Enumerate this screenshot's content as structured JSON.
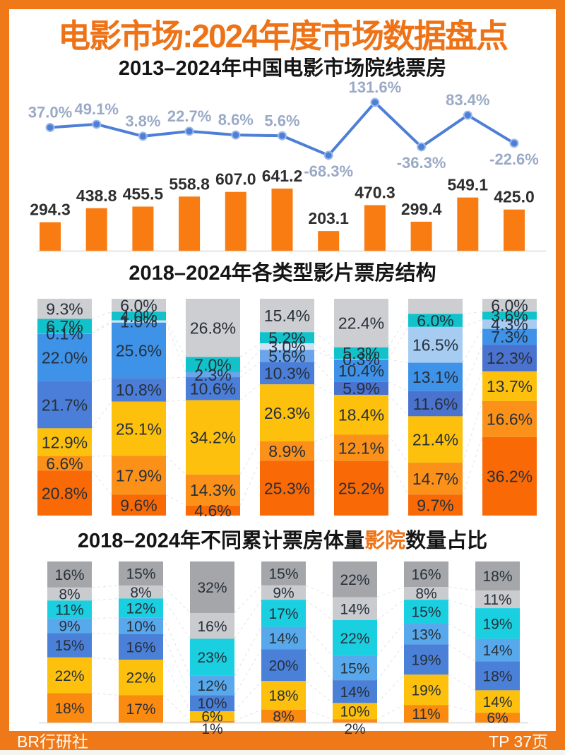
{
  "page": {
    "title": "电影市场:2024年度市场数据盘点",
    "footer_left": "BR行研社",
    "footer_right": "TP 37页"
  },
  "palette": {
    "frame": "#ef7918",
    "title_accent": "#ee7216",
    "bar_orange": "#f87c12",
    "line_blue": "#4d7fd6",
    "dot_ring": "#9db9ea",
    "line_label": "#9aaac6",
    "value_label": "#2e2e2e",
    "seg_label": "#272f3a",
    "connector": "#e3e5e8",
    "baseline": "#d9d9d9",
    "stack2": {
      "gray": "#cdced1",
      "teal": "#12c2ca",
      "pale": "#cfe2f5",
      "lightBlue": "#a6ccf2",
      "sky": "#6aa4ea",
      "blue": "#3e92e8",
      "royal": "#4a7ed8",
      "deep": "#4a72cf",
      "gold": "#fcc00d",
      "orange": "#fb9119",
      "deepOrange": "#f96a06"
    },
    "stack3": {
      "darkGray": "#a4a6a9",
      "lightGray": "#c9cbce",
      "cyan": "#19cfe0",
      "sky": "#57a9ec",
      "royal": "#4a80d8",
      "gold": "#fcc00d",
      "orange": "#fb8a10"
    }
  },
  "chart_data": [
    {
      "type": "bar+line",
      "title": "2013–2024年中国电影市场院线票房",
      "legend_position": "none",
      "grid": false,
      "bars": {
        "values": [
          294.3,
          438.8,
          455.5,
          558.8,
          607.0,
          641.2,
          203.1,
          470.3,
          299.4,
          549.1,
          425.0
        ],
        "labels": [
          "294.3",
          "438.8",
          "455.5",
          "558.8",
          "607.0",
          "641.2",
          "203.1",
          "470.3",
          "299.4",
          "549.1",
          "425.0"
        ]
      },
      "line": {
        "values": [
          37.0,
          49.1,
          3.8,
          22.7,
          8.6,
          5.6,
          -68.3,
          131.6,
          -36.3,
          83.4,
          -22.6
        ],
        "labels": [
          "37.0%",
          "49.1%",
          "3.8%",
          "22.7%",
          "8.6%",
          "5.6%",
          "-68.3%",
          "131.6%",
          "-36.3%",
          "83.4%",
          "-22.6%"
        ],
        "ylim": [
          -68.3,
          131.6
        ]
      }
    },
    {
      "type": "stacked-bar-100",
      "title": "2018–2024年各类型影片票房结构",
      "grid": false,
      "columns": [
        {
          "segments": [
            {
              "pct": 9.3,
              "label": "9.3%",
              "color": "gray"
            },
            {
              "pct": 6.7,
              "label": "6.7%",
              "color": "teal"
            },
            {
              "pct": 0.1,
              "label": "0.1%",
              "color": "pale"
            },
            {
              "pct": 22.0,
              "label": "22.0%",
              "color": "blue"
            },
            {
              "pct": 21.7,
              "label": "21.7%",
              "color": "royal"
            },
            {
              "pct": 12.9,
              "label": "12.9%",
              "color": "gold"
            },
            {
              "pct": 6.6,
              "label": "6.6%",
              "color": "orange"
            },
            {
              "pct": 20.8,
              "label": "20.8%",
              "color": "deepOrange"
            }
          ]
        },
        {
          "segments": [
            {
              "pct": 6.0,
              "label": "6.0%",
              "color": "gray"
            },
            {
              "pct": 4.0,
              "label": "4.0%",
              "color": "teal"
            },
            {
              "pct": 1.0,
              "label": "1.0%",
              "color": "pale"
            },
            {
              "pct": 25.6,
              "label": "25.6%",
              "color": "blue"
            },
            {
              "pct": 10.8,
              "label": "10.8%",
              "color": "royal"
            },
            {
              "pct": 25.1,
              "label": "25.1%",
              "color": "gold"
            },
            {
              "pct": 17.9,
              "label": "17.9%",
              "color": "orange"
            },
            {
              "pct": 9.6,
              "label": "9.6%",
              "color": "deepOrange"
            }
          ]
        },
        {
          "segments": [
            {
              "pct": 26.8,
              "label": "26.8%",
              "color": "gray"
            },
            {
              "pct": 7.0,
              "label": "7.0%",
              "color": "teal"
            },
            {
              "pct": 2.3,
              "label": "2.3%",
              "color": "sky"
            },
            {
              "pct": 10.6,
              "label": "10.6%",
              "color": "royal"
            },
            {
              "pct": 34.2,
              "label": "34.2%",
              "color": "gold"
            },
            {
              "pct": 14.3,
              "label": "14.3%",
              "color": "orange"
            },
            {
              "pct": 4.6,
              "label": "4.6%",
              "color": "deepOrange"
            }
          ]
        },
        {
          "segments": [
            {
              "pct": 15.4,
              "label": "15.4%",
              "color": "gray"
            },
            {
              "pct": 5.2,
              "label": "5.2%",
              "color": "teal"
            },
            {
              "pct": 3.0,
              "label": "3.0%",
              "color": "pale"
            },
            {
              "pct": 5.6,
              "label": "5.6%",
              "color": "sky"
            },
            {
              "pct": 10.3,
              "label": "10.3%",
              "color": "royal"
            },
            {
              "pct": 26.3,
              "label": "26.3%",
              "color": "gold"
            },
            {
              "pct": 8.9,
              "label": "8.9%",
              "color": "orange"
            },
            {
              "pct": 25.3,
              "label": "25.3%",
              "color": "deepOrange"
            }
          ]
        },
        {
          "segments": [
            {
              "pct": 22.4,
              "label": "22.4%",
              "color": "gray"
            },
            {
              "pct": 5.3,
              "label": "5.3%",
              "color": "teal"
            },
            {
              "pct": 0.3,
              "label": "0.3%",
              "color": "pale"
            },
            {
              "pct": 10.4,
              "label": "10.4%",
              "color": "blue"
            },
            {
              "pct": 5.9,
              "label": "5.9%",
              "color": "deep"
            },
            {
              "pct": 18.4,
              "label": "18.4%",
              "color": "gold"
            },
            {
              "pct": 12.1,
              "label": "12.1%",
              "color": "orange"
            },
            {
              "pct": 25.2,
              "label": "25.2%",
              "color": "deepOrange"
            }
          ]
        },
        {
          "segments": [
            {
              "pct": 7.0,
              "label": "",
              "color": "gray"
            },
            {
              "pct": 6.0,
              "label": "6.0%",
              "color": "teal"
            },
            {
              "pct": 16.5,
              "label": "16.5%",
              "color": "lightBlue"
            },
            {
              "pct": 13.1,
              "label": "13.1%",
              "color": "blue"
            },
            {
              "pct": 11.6,
              "label": "11.6%",
              "color": "deep"
            },
            {
              "pct": 21.4,
              "label": "21.4%",
              "color": "gold"
            },
            {
              "pct": 14.7,
              "label": "14.7%",
              "color": "orange"
            },
            {
              "pct": 9.7,
              "label": "9.7%",
              "color": "deepOrange"
            }
          ]
        },
        {
          "segments": [
            {
              "pct": 6.0,
              "label": "6.0%",
              "color": "gray"
            },
            {
              "pct": 3.6,
              "label": "3.6%",
              "color": "teal"
            },
            {
              "pct": 4.3,
              "label": "4.3%",
              "color": "lightBlue"
            },
            {
              "pct": 7.3,
              "label": "7.3%",
              "color": "blue"
            },
            {
              "pct": 12.3,
              "label": "12.3%",
              "color": "deep"
            },
            {
              "pct": 13.7,
              "label": "13.7%",
              "color": "gold"
            },
            {
              "pct": 16.6,
              "label": "16.6%",
              "color": "orange"
            },
            {
              "pct": 36.2,
              "label": "36.2%",
              "color": "deepOrange"
            }
          ]
        }
      ]
    },
    {
      "type": "stacked-bar-100",
      "title_parts": [
        "2018–2024年不同累计票房体量",
        "影院",
        "数量占比"
      ],
      "grid": false,
      "columns": [
        {
          "segments": [
            {
              "pct": 16,
              "label": "16%",
              "color": "darkGray"
            },
            {
              "pct": 8,
              "label": "8%",
              "color": "lightGray"
            },
            {
              "pct": 11,
              "label": "11%",
              "color": "cyan"
            },
            {
              "pct": 9,
              "label": "9%",
              "color": "sky"
            },
            {
              "pct": 15,
              "label": "15%",
              "color": "royal"
            },
            {
              "pct": 22,
              "label": "22%",
              "color": "gold"
            },
            {
              "pct": 18,
              "label": "18%",
              "color": "orange"
            }
          ]
        },
        {
          "segments": [
            {
              "pct": 15,
              "label": "15%",
              "color": "darkGray"
            },
            {
              "pct": 8,
              "label": "8%",
              "color": "lightGray"
            },
            {
              "pct": 12,
              "label": "12%",
              "color": "cyan"
            },
            {
              "pct": 10,
              "label": "10%",
              "color": "sky"
            },
            {
              "pct": 16,
              "label": "16%",
              "color": "royal"
            },
            {
              "pct": 22,
              "label": "22%",
              "color": "gold"
            },
            {
              "pct": 17,
              "label": "17%",
              "color": "orange"
            }
          ]
        },
        {
          "segments": [
            {
              "pct": 32,
              "label": "32%",
              "color": "darkGray"
            },
            {
              "pct": 16,
              "label": "16%",
              "color": "lightGray"
            },
            {
              "pct": 23,
              "label": "23%",
              "color": "cyan"
            },
            {
              "pct": 12,
              "label": "12%",
              "color": "sky"
            },
            {
              "pct": 10,
              "label": "10%",
              "color": "royal"
            },
            {
              "pct": 6,
              "label": "6%",
              "color": "gold"
            },
            {
              "pct": 1,
              "label": "1%",
              "color": "orange"
            }
          ]
        },
        {
          "segments": [
            {
              "pct": 15,
              "label": "15%",
              "color": "darkGray"
            },
            {
              "pct": 9,
              "label": "9%",
              "color": "lightGray"
            },
            {
              "pct": 17,
              "label": "17%",
              "color": "cyan"
            },
            {
              "pct": 14,
              "label": "14%",
              "color": "sky"
            },
            {
              "pct": 20,
              "label": "20%",
              "color": "royal"
            },
            {
              "pct": 18,
              "label": "18%",
              "color": "gold"
            },
            {
              "pct": 8,
              "label": "8%",
              "color": "orange"
            }
          ]
        },
        {
          "segments": [
            {
              "pct": 22,
              "label": "22%",
              "color": "darkGray"
            },
            {
              "pct": 14,
              "label": "14%",
              "color": "lightGray"
            },
            {
              "pct": 22,
              "label": "22%",
              "color": "cyan"
            },
            {
              "pct": 15,
              "label": "15%",
              "color": "sky"
            },
            {
              "pct": 14,
              "label": "14%",
              "color": "royal"
            },
            {
              "pct": 10,
              "label": "10%",
              "color": "gold"
            },
            {
              "pct": 2,
              "label": "2%",
              "color": "orange"
            }
          ]
        },
        {
          "segments": [
            {
              "pct": 16,
              "label": "16%",
              "color": "darkGray"
            },
            {
              "pct": 8,
              "label": "8%",
              "color": "lightGray"
            },
            {
              "pct": 15,
              "label": "15%",
              "color": "cyan"
            },
            {
              "pct": 13,
              "label": "13%",
              "color": "sky"
            },
            {
              "pct": 19,
              "label": "19%",
              "color": "royal"
            },
            {
              "pct": 19,
              "label": "19%",
              "color": "gold"
            },
            {
              "pct": 11,
              "label": "11%",
              "color": "orange"
            }
          ]
        },
        {
          "segments": [
            {
              "pct": 18,
              "label": "18%",
              "color": "darkGray"
            },
            {
              "pct": 11,
              "label": "11%",
              "color": "lightGray"
            },
            {
              "pct": 19,
              "label": "19%",
              "color": "cyan"
            },
            {
              "pct": 14,
              "label": "14%",
              "color": "sky"
            },
            {
              "pct": 18,
              "label": "18%",
              "color": "royal"
            },
            {
              "pct": 14,
              "label": "14%",
              "color": "gold"
            },
            {
              "pct": 6,
              "label": "6%",
              "color": "orange"
            }
          ]
        }
      ]
    }
  ]
}
